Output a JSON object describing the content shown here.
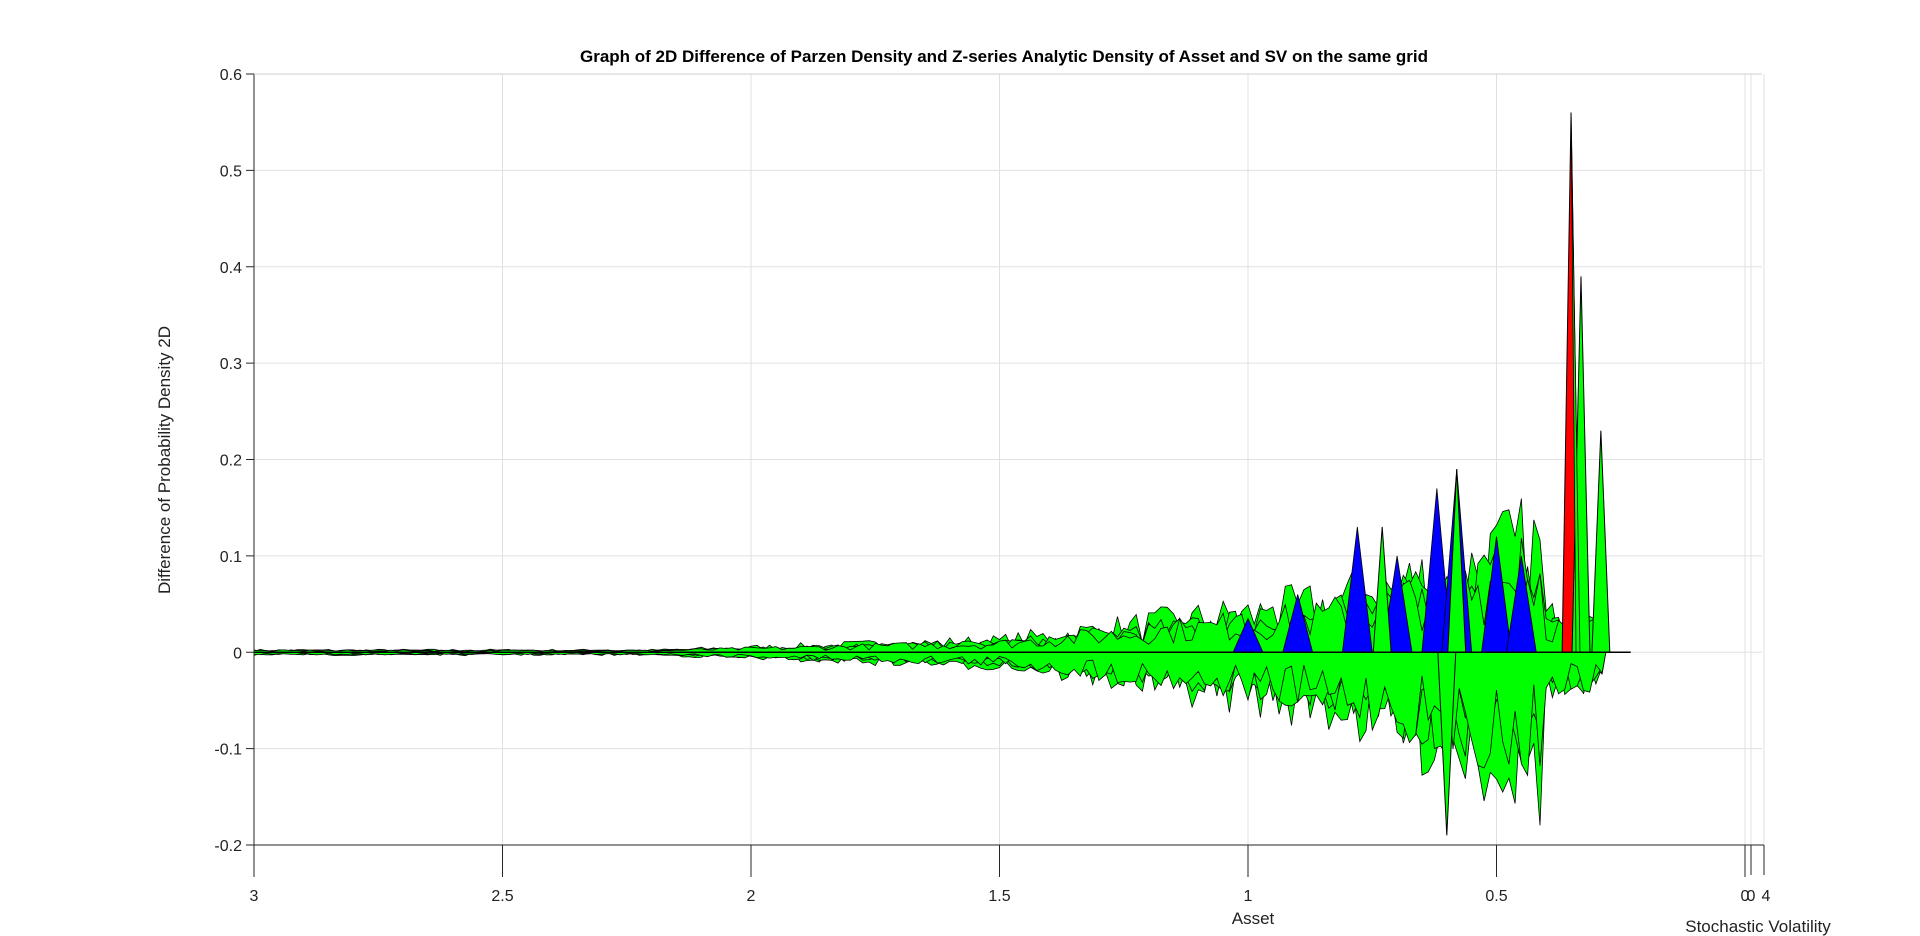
{
  "chart_data": {
    "type": "surface",
    "title": "Graph of 2D Difference of Parzen Density and Z-series Analytic Density of Asset and SV on the same grid",
    "xlabel": "Asset",
    "ylabel": "Difference of Probability Density 2D",
    "zlabel": "Stochastic Volatility",
    "xlim": [
      0,
      3
    ],
    "x_direction": "reversed",
    "ylim": [
      -0.2,
      0.6
    ],
    "x_ticks": [
      "3",
      "2.5",
      "2",
      "1.5",
      "1",
      "0.5",
      "0"
    ],
    "y_ticks": [
      "0.6",
      "0.5",
      "0.4",
      "0.3",
      "0.2",
      "0.1",
      "0",
      "-0.1",
      "-0.2"
    ],
    "z_ticks": [
      "0",
      "4"
    ],
    "grid": true,
    "colors": {
      "positive_fill": "#00ff00",
      "blue_fill": "#0000ff",
      "red_fill": "#ff0000",
      "edge": "#000000"
    },
    "notable_points": [
      {
        "asset": 0.35,
        "value": 0.56
      },
      {
        "asset": 0.33,
        "value": 0.39
      },
      {
        "asset": 0.29,
        "value": 0.23
      },
      {
        "asset": 0.58,
        "value": 0.19
      },
      {
        "asset": 0.6,
        "value": -0.19
      },
      {
        "asset": 0.73,
        "value": 0.13
      }
    ]
  }
}
